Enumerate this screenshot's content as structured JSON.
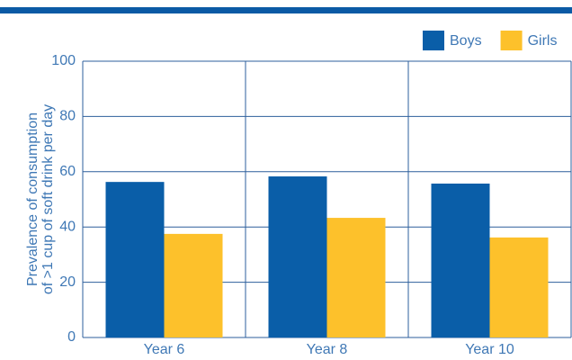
{
  "chart_data": {
    "type": "bar",
    "ylabel": [
      "Prevalence of consumption",
      "of >1 cup of soft drink per day"
    ],
    "categories": [
      "Year 6",
      "Year 8",
      "Year 10"
    ],
    "series": [
      {
        "name": "Boys",
        "color": "#0a5ea8",
        "values": [
          56.3,
          58.3,
          55.7
        ]
      },
      {
        "name": "Girls",
        "color": "#fdc12b",
        "values": [
          37.5,
          43.3,
          36.2
        ]
      }
    ],
    "ylim": [
      0,
      100
    ],
    "yticks": [
      0,
      20,
      40,
      60,
      80,
      100
    ],
    "grid": true,
    "legend": "top-right"
  }
}
